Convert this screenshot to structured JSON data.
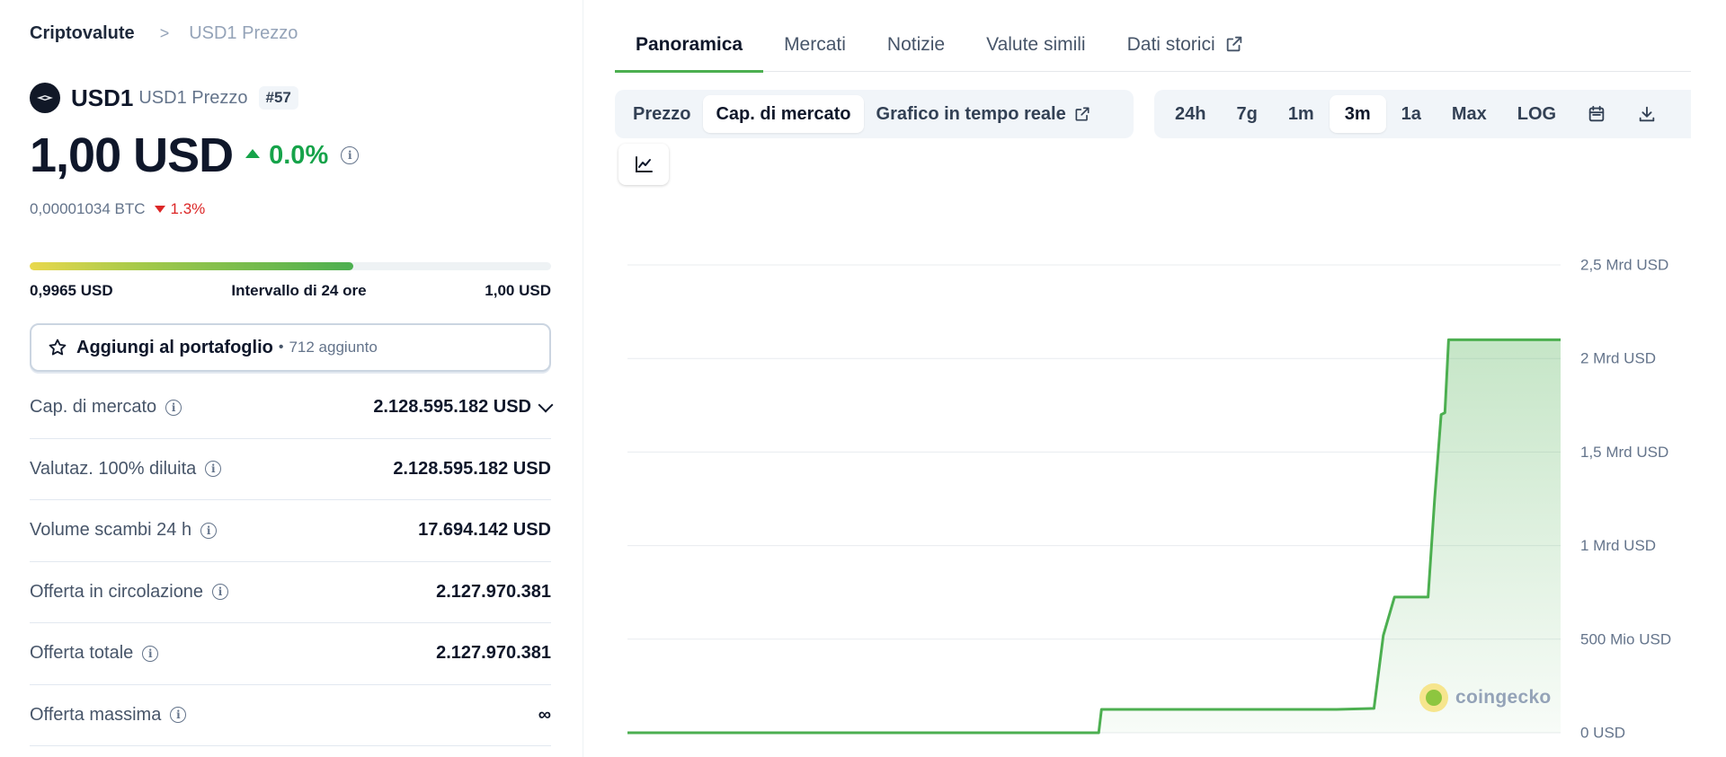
{
  "breadcrumb": {
    "root": "Criptovalute",
    "separator": ">",
    "current": "USD1 Prezzo"
  },
  "coin": {
    "symbol": "USD1",
    "subtitle": "USD1 Prezzo",
    "rank": "#57",
    "price": "1,00 USD",
    "change_24h": "0.0%",
    "btc_price": "0,00001034 BTC",
    "btc_change": "1.3%"
  },
  "range": {
    "low": "0,9965 USD",
    "label": "Intervallo di 24 ore",
    "high": "1,00 USD",
    "fill_fraction": 0.62
  },
  "portfolio": {
    "label": "Aggiungi al portafoglio",
    "dot": "•",
    "count": "712 aggiunto"
  },
  "stats": [
    {
      "label": "Cap. di mercato",
      "value": "2.128.595.182 USD"
    },
    {
      "label": "Valutaz. 100% diluita",
      "value": "2.128.595.182 USD"
    },
    {
      "label": "Volume scambi 24 h",
      "value": "17.694.142 USD"
    },
    {
      "label": "Offerta in circolazione",
      "value": "2.127.970.381"
    },
    {
      "label": "Offerta totale",
      "value": "2.127.970.381"
    },
    {
      "label": "Offerta massima",
      "value": "∞"
    }
  ],
  "tabs": [
    "Panoramica",
    "Mercati",
    "Notizie",
    "Valute simili",
    "Dati storici"
  ],
  "active_tab": "Panoramica",
  "chart_modes": [
    "Prezzo",
    "Cap. di mercato",
    "Grafico in tempo reale"
  ],
  "active_mode": "Cap. di mercato",
  "ranges": [
    "24h",
    "7g",
    "1m",
    "3m",
    "1a",
    "Max",
    "LOG"
  ],
  "active_range": "3m",
  "icons": {
    "external_link": "external-link-icon",
    "calendar": "calendar-icon",
    "download": "download-icon",
    "chart_type": "line-chart-icon",
    "star": "star-icon",
    "info": "info-icon"
  },
  "watermark": "coingecko",
  "colors": {
    "accent": "#4caf50",
    "positive": "#16a34a",
    "negative": "#dc2626",
    "line": "#4caf50"
  },
  "chart_data": {
    "type": "area",
    "ylabel": "",
    "ylim": [
      0,
      2500000000
    ],
    "y_tick_labels": [
      "0 USD",
      "500 Mio USD",
      "1 Mrd USD",
      "1,5 Mrd USD",
      "2 Mrd USD",
      "2,5 Mrd USD"
    ],
    "y_ticks": [
      0,
      500000000,
      1000000000,
      1500000000,
      2000000000,
      2500000000
    ],
    "grid": true,
    "series": [
      {
        "values": [
          [
            0,
            0
          ],
          [
            0.505,
            0
          ],
          [
            0.508,
            125000000
          ],
          [
            0.76,
            125000000
          ],
          [
            0.8,
            130000000
          ],
          [
            0.81,
            520000000
          ],
          [
            0.822,
            725000000
          ],
          [
            0.858,
            725000000
          ],
          [
            0.865,
            1250000000
          ],
          [
            0.872,
            1700000000
          ],
          [
            0.876,
            1710000000
          ],
          [
            0.88,
            2100000000
          ],
          [
            1.0,
            2100000000
          ]
        ]
      }
    ]
  }
}
